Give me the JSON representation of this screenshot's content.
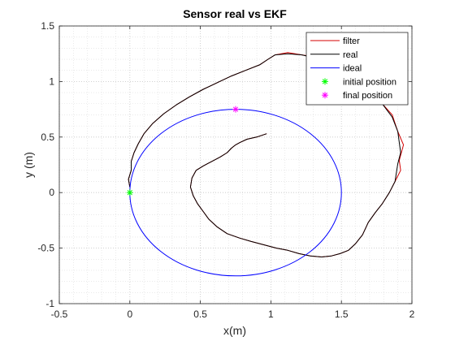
{
  "chart_data": {
    "type": "line",
    "title": "Sensor real vs EKF",
    "xlabel": "x(m)",
    "ylabel": "y (m)",
    "xlim": [
      -0.5,
      2
    ],
    "ylim": [
      -1,
      1.5
    ],
    "xticks": [
      -0.5,
      0,
      0.5,
      1,
      1.5,
      2
    ],
    "yticks": [
      -1,
      -0.5,
      0,
      0.5,
      1,
      1.5
    ],
    "xtick_labels": [
      "-0.5",
      "0",
      "0.5",
      "1",
      "1.5",
      "2"
    ],
    "ytick_labels": [
      "-1",
      "-0.5",
      "0",
      "0.5",
      "1",
      "1.5"
    ],
    "grid": true,
    "minor_grid": true,
    "legend_position": "top-right",
    "series": [
      {
        "name": "filter",
        "style": "line",
        "color": "#d40000",
        "x": [
          0.0,
          -0.01,
          0.01,
          0.01,
          0.03,
          0.06,
          0.1,
          0.16,
          0.24,
          0.33,
          0.42,
          0.52,
          0.62,
          0.72,
          0.82,
          0.92,
          0.98,
          1.03,
          1.12,
          1.22,
          1.32,
          1.42,
          1.52,
          1.6,
          1.65,
          1.72,
          1.79,
          1.86,
          1.9,
          1.94,
          1.91,
          1.92,
          1.88,
          1.84,
          1.79,
          1.74,
          1.69,
          1.65,
          1.6,
          1.55,
          1.49,
          1.43,
          1.36,
          1.28,
          1.2,
          1.12,
          1.04,
          0.95,
          0.86,
          0.78,
          0.69,
          0.62,
          0.56,
          0.52,
          0.48,
          0.45,
          0.43,
          0.44,
          0.47,
          0.52,
          0.58,
          0.64,
          0.69,
          0.72,
          0.75,
          0.78,
          0.83,
          0.9,
          0.97
        ],
        "y": [
          0.05,
          0.12,
          0.2,
          0.28,
          0.36,
          0.44,
          0.53,
          0.62,
          0.71,
          0.79,
          0.86,
          0.93,
          0.99,
          1.05,
          1.1,
          1.15,
          1.2,
          1.24,
          1.26,
          1.24,
          1.22,
          1.15,
          1.07,
          1.0,
          0.98,
          0.9,
          0.8,
          0.7,
          0.55,
          0.43,
          0.29,
          0.2,
          0.1,
          0.0,
          -0.1,
          -0.18,
          -0.27,
          -0.38,
          -0.46,
          -0.52,
          -0.55,
          -0.57,
          -0.58,
          -0.57,
          -0.55,
          -0.52,
          -0.5,
          -0.47,
          -0.44,
          -0.41,
          -0.37,
          -0.31,
          -0.24,
          -0.17,
          -0.1,
          -0.03,
          0.05,
          0.13,
          0.2,
          0.24,
          0.28,
          0.32,
          0.36,
          0.4,
          0.43,
          0.45,
          0.48,
          0.5,
          0.53
        ]
      },
      {
        "name": "real",
        "style": "line",
        "color": "#000000",
        "x": [
          0.0,
          -0.01,
          0.01,
          0.01,
          0.03,
          0.06,
          0.1,
          0.16,
          0.24,
          0.33,
          0.42,
          0.52,
          0.62,
          0.72,
          0.82,
          0.92,
          0.98,
          1.03,
          1.12,
          1.22,
          1.32,
          1.42,
          1.52,
          1.6,
          1.65,
          1.72,
          1.79,
          1.86,
          1.9,
          1.92,
          1.9,
          1.88,
          1.84,
          1.79,
          1.74,
          1.69,
          1.65,
          1.6,
          1.55,
          1.49,
          1.43,
          1.36,
          1.28,
          1.2,
          1.12,
          1.04,
          0.95,
          0.86,
          0.78,
          0.69,
          0.62,
          0.56,
          0.52,
          0.48,
          0.45,
          0.43,
          0.44,
          0.47,
          0.52,
          0.58,
          0.64,
          0.69,
          0.72,
          0.75,
          0.78,
          0.83,
          0.9,
          0.97
        ],
        "y": [
          0.05,
          0.12,
          0.2,
          0.28,
          0.36,
          0.44,
          0.53,
          0.62,
          0.71,
          0.79,
          0.86,
          0.93,
          0.99,
          1.05,
          1.1,
          1.15,
          1.2,
          1.24,
          1.25,
          1.24,
          1.21,
          1.15,
          1.07,
          1.0,
          0.97,
          0.9,
          0.8,
          0.68,
          0.55,
          0.36,
          0.26,
          0.1,
          0.0,
          -0.1,
          -0.18,
          -0.27,
          -0.38,
          -0.46,
          -0.52,
          -0.55,
          -0.57,
          -0.58,
          -0.57,
          -0.55,
          -0.52,
          -0.5,
          -0.47,
          -0.44,
          -0.41,
          -0.37,
          -0.31,
          -0.24,
          -0.17,
          -0.1,
          -0.03,
          0.05,
          0.13,
          0.2,
          0.24,
          0.28,
          0.32,
          0.36,
          0.4,
          0.43,
          0.45,
          0.48,
          0.5,
          0.53
        ]
      },
      {
        "name": "ideal",
        "style": "circle",
        "color": "#0000ff",
        "center": [
          0.75,
          0
        ],
        "radius": 0.75
      },
      {
        "name": "initial position",
        "style": "marker",
        "color": "#00ff00",
        "x": [
          0.0
        ],
        "y": [
          0.0
        ]
      },
      {
        "name": "final position",
        "style": "marker",
        "color": "#ff00ff",
        "x": [
          0.75
        ],
        "y": [
          0.75
        ]
      }
    ]
  }
}
